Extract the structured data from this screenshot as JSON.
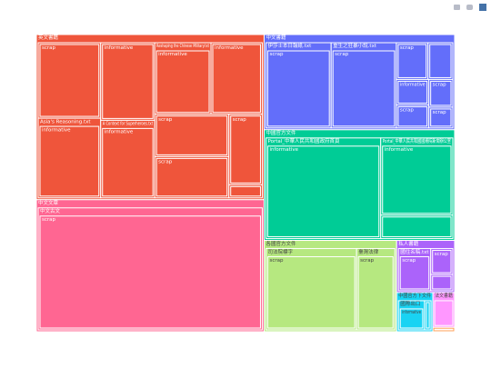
{
  "chart_data": {
    "type": "treemap",
    "items": [
      {
        "name": "英文書籍",
        "color": "#ef553b",
        "children": [
          {
            "name": null,
            "children": [
              {
                "name": "scrap",
                "value": 54
              }
            ]
          },
          {
            "name": "Asia's Reasoning.txt",
            "children": [
              {
                "name": "informative",
                "value": 57
              }
            ]
          },
          {
            "name": null,
            "children": [
              {
                "name": "informative",
                "value": 48
              }
            ]
          },
          {
            "name": "A Context for Superheroes.txt",
            "children": [
              {
                "name": "informative",
                "value": 48
              }
            ]
          },
          {
            "name": "Reshaping the Chinese Military.txt",
            "children": [
              {
                "name": "informative",
                "value": 46
              }
            ]
          },
          {
            "name": null,
            "children": [
              {
                "name": "informative",
                "value": 42
              }
            ]
          },
          {
            "name": null,
            "children": [
              {
                "name": "scrap",
                "value": 36
              }
            ]
          },
          {
            "name": null,
            "children": [
              {
                "name": "scrap",
                "value": 35
              }
            ]
          },
          {
            "name": null,
            "children": [
              {
                "name": "scrap",
                "value": 27
              }
            ]
          },
          {
            "name": null,
            "children": [
              {
                "name": null,
                "value": 5
              }
            ]
          }
        ]
      },
      {
        "name": "中文文章",
        "color": "#ff6692",
        "children": [
          {
            "name": "中文古文",
            "children": [
              {
                "name": "scrap",
                "value": 318
              }
            ]
          }
        ]
      },
      {
        "name": "中文書籍",
        "color": "#636efa",
        "children": [
          {
            "name": "伊莎士本日報紙.txt",
            "children": [
              {
                "name": "scrap",
                "value": 67
              }
            ]
          },
          {
            "name": "重生之狂暴小說.txt",
            "children": [
              {
                "name": "scrap",
                "value": 67
              }
            ]
          },
          {
            "name": null,
            "children": [
              {
                "name": "scrap",
                "value": 14
              }
            ]
          },
          {
            "name": null,
            "children": [
              {
                "name": null,
                "value": 11
              }
            ]
          },
          {
            "name": null,
            "children": [
              {
                "name": "informative",
                "value": 10
              }
            ]
          },
          {
            "name": null,
            "children": [
              {
                "name": "scrap",
                "value": 9
              }
            ]
          },
          {
            "name": null,
            "children": [
              {
                "name": "scrap",
                "value": 8
              }
            ]
          },
          {
            "name": null,
            "children": [
              {
                "name": "scrap",
                "value": 6
              }
            ]
          }
        ]
      },
      {
        "name": "中國官方文件",
        "color": "#00cc96",
        "children": [
          {
            "name": "Portal_中華人民共和國政府首頁",
            "children": [
              {
                "name": "informative",
                "value": 137
              }
            ]
          },
          {
            "name": "Portal_中華人民共和國國務院新聞辦公室",
            "children": [
              {
                "name": "informative",
                "value": 66
              }
            ]
          },
          {
            "name": null,
            "children": [
              {
                "name": null,
                "value": 20
              }
            ]
          }
        ]
      },
      {
        "name": "各國官方文件",
        "color": "#b6e880",
        "children": [
          {
            "name": "司法院標字",
            "children": [
              {
                "name": "scrap",
                "value": 90
              }
            ]
          },
          {
            "name": "臺灣法律",
            "children": [
              {
                "name": "scrap",
                "value": 38
              }
            ]
          }
        ]
      },
      {
        "name": "私人書籍",
        "color": "#ab63fa",
        "children": [
          {
            "name": "國住名稿.txt",
            "children": [
              {
                "name": "scrap",
                "value": 19
              }
            ]
          },
          {
            "name": null,
            "children": [
              {
                "name": "scrap",
                "value": 8
              }
            ]
          },
          {
            "name": null,
            "children": [
              {
                "name": null,
                "value": 5
              }
            ]
          }
        ]
      },
      {
        "name": "中國官方下文件",
        "color": "#19d3f3",
        "children": [
          {
            "name": "國際出口",
            "children": [
              {
                "name": "informative",
                "value": 12
              }
            ]
          },
          {
            "name": null,
            "children": [
              {
                "name": null,
                "value": 3
              }
            ]
          }
        ]
      },
      {
        "name": "法文書籍",
        "color": "#ff97ff",
        "children": [
          {
            "name": null,
            "value": 8
          }
        ]
      },
      {
        "name": null,
        "color": "#ffa15a",
        "children": [
          {
            "name": null,
            "value": 1
          }
        ]
      }
    ]
  }
}
